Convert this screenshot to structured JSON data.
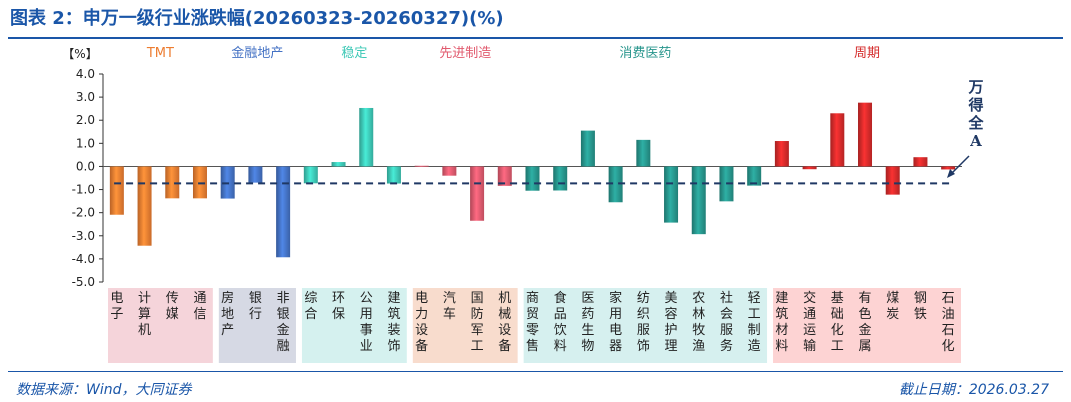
{
  "title": "图表 2：申万一级行业涨跌幅(20260323-20260327)(%)",
  "footer": {
    "source": "数据来源：Wind，大同证券",
    "date": "截止日期：2026.03.27"
  },
  "colors": {
    "title": "#1a56a8",
    "TMT": "#ed7d31",
    "金融地产": "#4472c4",
    "稳定": "#3dc8b6",
    "先进制造": "#e15a6e",
    "消费医药": "#27958c",
    "周期": "#d42a2a",
    "dashed": "#1f3864"
  },
  "chart_data": {
    "type": "bar",
    "unit_label": "【%】",
    "ylim": [
      -5.0,
      4.0
    ],
    "yticks": [
      "4.0",
      "3.0",
      "2.0",
      "1.0",
      "0.0",
      "-1.0",
      "-2.0",
      "-3.0",
      "-4.0",
      "-5.0"
    ],
    "benchmark": {
      "label": "万得全A",
      "value": -0.73
    },
    "groups": [
      {
        "name": "TMT",
        "color": "#ed7d31",
        "bg": "#f5d4da",
        "items": [
          {
            "name": "电子",
            "value": -2.09
          },
          {
            "name": "计算机",
            "value": -3.43
          },
          {
            "name": "传媒",
            "value": -1.38
          },
          {
            "name": "通信",
            "value": -1.38
          }
        ]
      },
      {
        "name": "金融地产",
        "color": "#4472c4",
        "bg": "#d6d9e4",
        "items": [
          {
            "name": "房地产",
            "value": -1.39
          },
          {
            "name": "银行",
            "value": -0.7
          },
          {
            "name": "非银金融",
            "value": -3.93
          }
        ]
      },
      {
        "name": "稳定",
        "color": "#3dc8b6",
        "bg": "#d5f1ef",
        "items": [
          {
            "name": "综合",
            "value": -0.73
          },
          {
            "name": "环保",
            "value": 0.19
          },
          {
            "name": "公用事业",
            "value": 2.53
          },
          {
            "name": "建筑装饰",
            "value": -0.74
          }
        ]
      },
      {
        "name": "先进制造",
        "color": "#e15a6e",
        "bg": "#f8dccd",
        "items": [
          {
            "name": "电力设备",
            "value": 0.03
          },
          {
            "name": "汽车",
            "value": -0.4
          },
          {
            "name": "国防军工",
            "value": -2.35
          },
          {
            "name": "机械设备",
            "value": -0.84
          }
        ]
      },
      {
        "name": "消费医药",
        "color": "#27958c",
        "bg": "#d6f0ef",
        "items": [
          {
            "name": "商贸零售",
            "value": -1.05
          },
          {
            "name": "食品饮料",
            "value": -1.04
          },
          {
            "name": "医药生物",
            "value": 1.55
          },
          {
            "name": "家用电器",
            "value": -1.55
          },
          {
            "name": "纺织服饰",
            "value": 1.15
          },
          {
            "name": "美容护理",
            "value": -2.43
          },
          {
            "name": "农林牧渔",
            "value": -2.93
          },
          {
            "name": "社会服务",
            "value": -1.51
          },
          {
            "name": "轻工制造",
            "value": -0.83
          }
        ]
      },
      {
        "name": "周期",
        "color": "#d42a2a",
        "bg": "#fdd3d3",
        "items": [
          {
            "name": "建筑材料",
            "value": 1.1
          },
          {
            "name": "交通运输",
            "value": -0.12
          },
          {
            "name": "基础化工",
            "value": 2.3
          },
          {
            "name": "有色金属",
            "value": 2.76
          },
          {
            "name": "煤炭",
            "value": -1.22
          },
          {
            "name": "钢铁",
            "value": 0.4
          },
          {
            "name": "石油石化",
            "value": -0.13
          }
        ]
      }
    ]
  }
}
